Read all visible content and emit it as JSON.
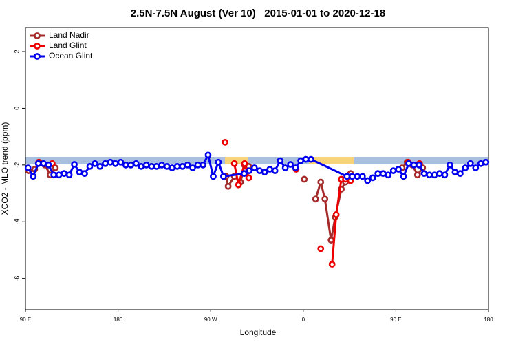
{
  "chart_data": {
    "type": "line",
    "title": "2.5N-7.5N August (Ver 10)   2015-01-01 to 2020-12-18",
    "x_label": "Longitude",
    "y_label": "XCO2 - MLO trend (ppm)",
    "xlim": [
      90,
      540
    ],
    "xticks": [
      {
        "value": 90,
        "label": "90 E"
      },
      {
        "value": 180,
        "label": "180"
      },
      {
        "value": 270,
        "label": "90 W"
      },
      {
        "value": 360,
        "label": "0"
      },
      {
        "value": 450,
        "label": "90 E"
      },
      {
        "value": 540,
        "label": "180"
      }
    ],
    "ylim": [
      -7.1,
      2.85
    ],
    "yticks": [
      -6,
      -4,
      -2,
      0,
      2
    ],
    "legend": "top-left",
    "series": [
      {
        "name": "Land Nadir",
        "color": "#a52a2a",
        "x": [
          93,
          99,
          103,
          109,
          114,
          119,
          null,
          285,
          287,
          293,
          299,
          303,
          307,
          null,
          361,
          null,
          372,
          377,
          381,
          387,
          391,
          397,
          401,
          406,
          null,
          456,
          461,
          466,
          471,
          476
        ],
        "values": [
          -2.2,
          -2.15,
          -1.9,
          -2.0,
          -2.35,
          -2.1,
          null,
          -2.4,
          -2.75,
          -2.4,
          -2.6,
          -2.0,
          -2.05,
          null,
          -2.5,
          null,
          -3.2,
          -2.6,
          -3.2,
          -4.65,
          -3.85,
          -2.85,
          -2.6,
          -2.3,
          null,
          -2.1,
          -1.9,
          -2.0,
          -2.35,
          -2.1
        ]
      },
      {
        "name": "Land Glint",
        "color": "#ee0000",
        "x": [
          103,
          116,
          null,
          284,
          null,
          293,
          297,
          303,
          307,
          null,
          353,
          null,
          377,
          null,
          388,
          392,
          397,
          401,
          406,
          null,
          462,
          473
        ],
        "values": [
          -1.9,
          -1.95,
          null,
          -1.2,
          null,
          -1.95,
          -2.7,
          -1.95,
          -2.45,
          null,
          -2.15,
          null,
          -4.95,
          null,
          -5.5,
          -3.75,
          -2.5,
          -2.5,
          -2.55,
          null,
          -1.9,
          -1.95
        ]
      },
      {
        "name": "Ocean Glint",
        "color": "#0000ee",
        "x": [
          92.5,
          97.5,
          102.5,
          107.5,
          112.5,
          117.5,
          122.5,
          127.5,
          132.5,
          137.5,
          142.5,
          147.5,
          152.5,
          157.5,
          162.5,
          167.5,
          172.5,
          177.5,
          182.5,
          187.5,
          192.5,
          197.5,
          202.5,
          207.5,
          212.5,
          217.5,
          222.5,
          227.5,
          232.5,
          237.5,
          242.5,
          247.5,
          252.5,
          257.5,
          262.5,
          267.5,
          272.5,
          277.5,
          282.5,
          302.5,
          307.5,
          312.5,
          317.5,
          322.5,
          327.5,
          332.5,
          337.5,
          342.5,
          347.5,
          352.5,
          357.5,
          362.5,
          367.5,
          402.5,
          407.5,
          412.5,
          417.5,
          422.5,
          427.5,
          432.5,
          437.5,
          442.5,
          447.5,
          452.5,
          457.5,
          462.5,
          467.5,
          472.5,
          477.5,
          482.5,
          487.5,
          492.5,
          497.5,
          502.5,
          507.5,
          512.5,
          517.5,
          522.5,
          527.5,
          532.5,
          537.5
        ],
        "values": [
          -2.1,
          -2.4,
          -1.95,
          -1.95,
          -2.0,
          -2.35,
          -2.35,
          -2.3,
          -2.35,
          -1.98,
          -2.25,
          -2.3,
          -2.05,
          -1.95,
          -2.05,
          -1.95,
          -1.9,
          -1.95,
          -1.9,
          -2.0,
          -2.0,
          -1.95,
          -2.05,
          -2.0,
          -2.05,
          -2.05,
          -2.0,
          -2.05,
          -2.1,
          -2.05,
          -2.05,
          -2.0,
          -2.1,
          -2.0,
          -2.0,
          -1.65,
          -2.4,
          -1.9,
          -2.4,
          -2.3,
          -2.2,
          -2.1,
          -2.2,
          -2.25,
          -2.15,
          -2.2,
          -1.85,
          -2.1,
          -1.98,
          -2.1,
          -1.85,
          -1.8,
          -1.8,
          -2.4,
          -2.4,
          -2.4,
          -2.4,
          -2.55,
          -2.45,
          -2.3,
          -2.3,
          -2.35,
          -2.2,
          -2.15,
          -2.4,
          -1.95,
          -2.0,
          -2.0,
          -2.3,
          -2.35,
          -2.35,
          -2.3,
          -2.35,
          -2.0,
          -2.25,
          -2.3,
          -2.1,
          -1.95,
          -2.1,
          -1.95,
          -1.9
        ]
      }
    ]
  }
}
